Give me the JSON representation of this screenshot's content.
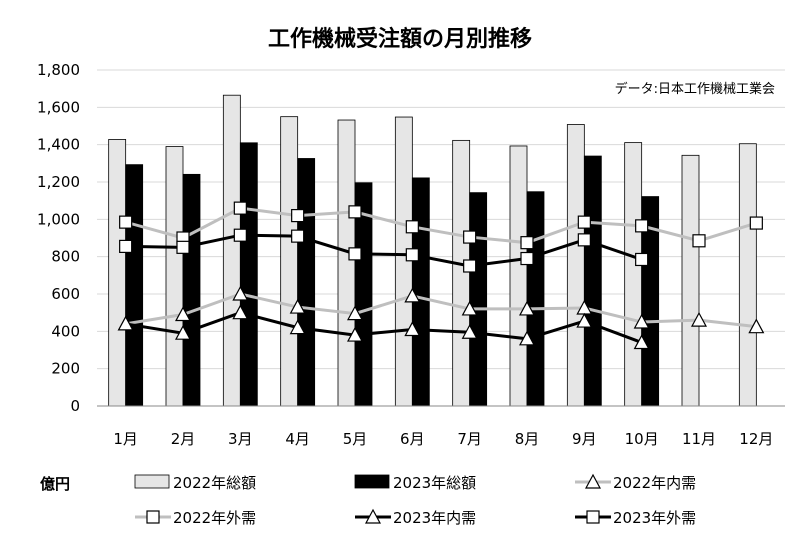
{
  "chart_data": {
    "type": "bar",
    "title": "工作機械受注額の月別推移",
    "source_note": "データ:日本工作機械工業会",
    "unit_label": "億円",
    "categories": [
      "1月",
      "2月",
      "3月",
      "4月",
      "5月",
      "6月",
      "7月",
      "8月",
      "9月",
      "10月",
      "11月",
      "12月"
    ],
    "ylim": [
      0,
      1800
    ],
    "yticks": [
      0,
      200,
      400,
      600,
      800,
      1000,
      1200,
      1400,
      1600,
      1800
    ],
    "ytick_labels": [
      "0",
      "200",
      "400",
      "600",
      "800",
      "1,000",
      "1,200",
      "1,400",
      "1,600",
      "1,800"
    ],
    "grid": true,
    "legend_position": "bottom",
    "series": [
      {
        "name": "2022年総額",
        "kind": "bar",
        "color": "#e6e6e6",
        "values": [
          1428,
          1390,
          1665,
          1550,
          1532,
          1548,
          1423,
          1393,
          1508,
          1411,
          1343,
          1405
        ]
      },
      {
        "name": "2023年総額",
        "kind": "bar",
        "color": "#000000",
        "values": [
          1293,
          1241,
          1410,
          1326,
          1196,
          1222,
          1143,
          1148,
          1339,
          1122,
          null,
          null
        ]
      },
      {
        "name": "2022年内需",
        "kind": "line",
        "marker": "triangle",
        "color": "#bfbfbf",
        "values": [
          440,
          490,
          600,
          530,
          495,
          590,
          520,
          520,
          525,
          450,
          460,
          425
        ]
      },
      {
        "name": "2022年外需",
        "kind": "line",
        "marker": "square",
        "color": "#bfbfbf",
        "values": [
          985,
          900,
          1060,
          1020,
          1040,
          960,
          905,
          875,
          985,
          965,
          885,
          980
        ]
      },
      {
        "name": "2023年内需",
        "kind": "line",
        "marker": "triangle",
        "color": "#000000",
        "values": [
          440,
          390,
          500,
          420,
          380,
          410,
          395,
          360,
          455,
          340,
          null,
          null
        ]
      },
      {
        "name": "2023年外需",
        "kind": "line",
        "marker": "square",
        "color": "#000000",
        "values": [
          855,
          850,
          915,
          910,
          815,
          810,
          750,
          790,
          890,
          785,
          null,
          null
        ]
      }
    ]
  }
}
